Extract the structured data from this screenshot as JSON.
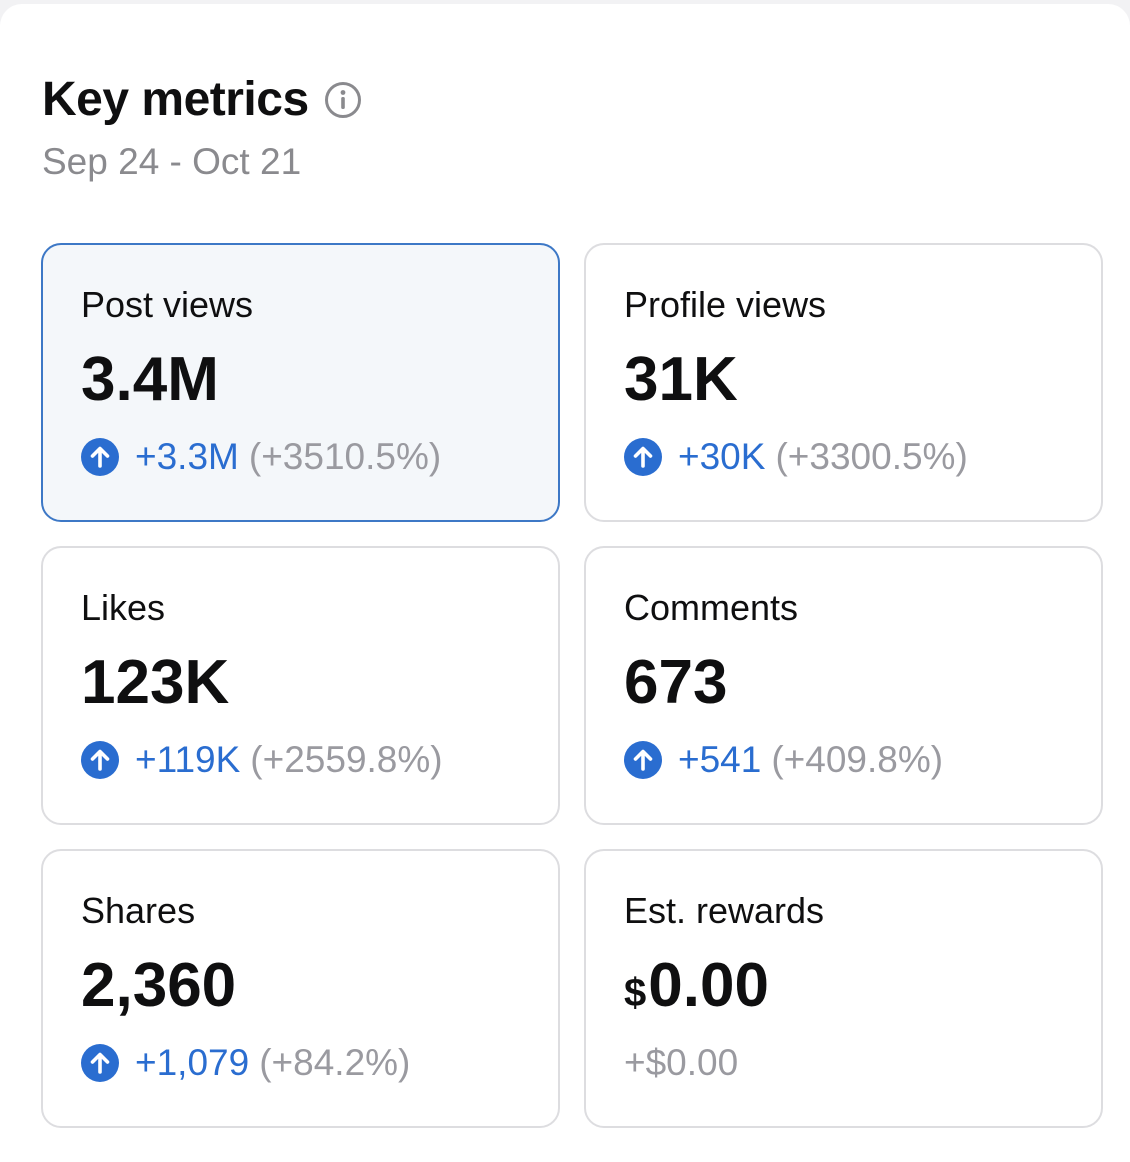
{
  "header": {
    "title": "Key metrics",
    "info_icon": "info-circle-icon",
    "date_range": "Sep 24 - Oct 21"
  },
  "colors": {
    "accent": "#2a6dd0",
    "selected_border": "#3d78c6",
    "muted": "#9a9aa0"
  },
  "metrics": [
    {
      "label": "Post views",
      "value": "3.4M",
      "delta": "+3.3M",
      "pct": "(+3510.5%)",
      "icon": "arrow-up-circle-icon",
      "selected": true
    },
    {
      "label": "Profile views",
      "value": "31K",
      "delta": "+30K",
      "pct": "(+3300.5%)",
      "icon": "arrow-up-circle-icon"
    },
    {
      "label": "Likes",
      "value": "123K",
      "delta": "+119K",
      "pct": "(+2559.8%)",
      "icon": "arrow-up-circle-icon"
    },
    {
      "label": "Comments",
      "value": "673",
      "delta": "+541",
      "pct": "(+409.8%)",
      "icon": "arrow-up-circle-icon"
    },
    {
      "label": "Shares",
      "value": "2,360",
      "delta": "+1,079",
      "pct": "(+84.2%)",
      "icon": "arrow-up-circle-icon"
    },
    {
      "label": "Est. rewards",
      "currency": "$",
      "value": "0.00",
      "delta": "+$0.00"
    }
  ]
}
